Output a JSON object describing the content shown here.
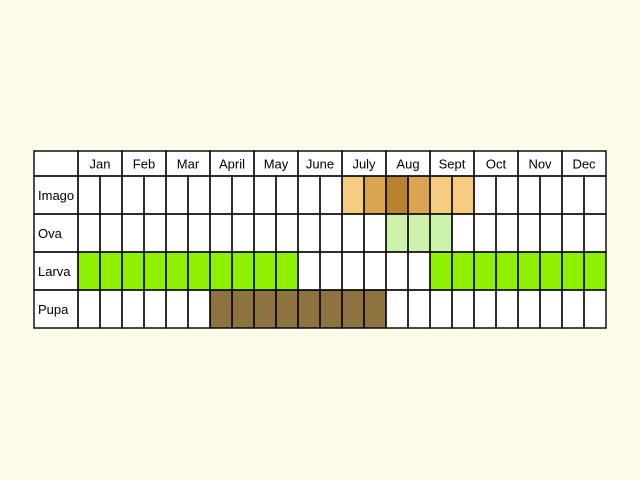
{
  "chart_data": {
    "type": "table",
    "months": [
      "Jan",
      "Feb",
      "Mar",
      "April",
      "May",
      "June",
      "July",
      "Aug",
      "Sept",
      "Oct",
      "Nov",
      "Dec"
    ],
    "segments_per_month": 2,
    "rows": [
      {
        "label": "Imago",
        "key": "imago",
        "fills": [
          {
            "segment": 12,
            "color": "#f5cc80"
          },
          {
            "segment": 13,
            "color": "#d9a550"
          },
          {
            "segment": 14,
            "color": "#b8822e"
          },
          {
            "segment": 15,
            "color": "#d9a550"
          },
          {
            "segment": 16,
            "color": "#f5cc80"
          },
          {
            "segment": 17,
            "color": "#f5cc80"
          }
        ]
      },
      {
        "label": "Ova",
        "key": "ova",
        "fills": [
          {
            "segment": 14,
            "color": "#cdf2ab"
          },
          {
            "segment": 15,
            "color": "#cdf2ab"
          },
          {
            "segment": 16,
            "color": "#cdf2ab"
          }
        ]
      },
      {
        "label": "Larva",
        "key": "larva",
        "fills": [
          {
            "segment": 0,
            "color": "#8ff000"
          },
          {
            "segment": 1,
            "color": "#8ff000"
          },
          {
            "segment": 2,
            "color": "#8ff000"
          },
          {
            "segment": 3,
            "color": "#8ff000"
          },
          {
            "segment": 4,
            "color": "#8ff000"
          },
          {
            "segment": 5,
            "color": "#8ff000"
          },
          {
            "segment": 6,
            "color": "#8ff000"
          },
          {
            "segment": 7,
            "color": "#8ff000"
          },
          {
            "segment": 8,
            "color": "#8ff000"
          },
          {
            "segment": 9,
            "color": "#8ff000"
          },
          {
            "segment": 16,
            "color": "#8ff000"
          },
          {
            "segment": 17,
            "color": "#8ff000"
          },
          {
            "segment": 18,
            "color": "#8ff000"
          },
          {
            "segment": 19,
            "color": "#8ff000"
          },
          {
            "segment": 20,
            "color": "#8ff000"
          },
          {
            "segment": 21,
            "color": "#8ff000"
          },
          {
            "segment": 22,
            "color": "#8ff000"
          },
          {
            "segment": 23,
            "color": "#8ff000"
          }
        ]
      },
      {
        "label": "Pupa",
        "key": "pupa",
        "fills": [
          {
            "segment": 6,
            "color": "#8c7340"
          },
          {
            "segment": 7,
            "color": "#8c7340"
          },
          {
            "segment": 8,
            "color": "#8c7340"
          },
          {
            "segment": 9,
            "color": "#8c7340"
          },
          {
            "segment": 10,
            "color": "#8c7340"
          },
          {
            "segment": 11,
            "color": "#8c7340"
          },
          {
            "segment": 12,
            "color": "#8c7340"
          },
          {
            "segment": 13,
            "color": "#8c7340"
          }
        ]
      }
    ],
    "colors": {
      "background": "#fdfce8",
      "cell": "#ffffff",
      "border": "#000000"
    }
  }
}
